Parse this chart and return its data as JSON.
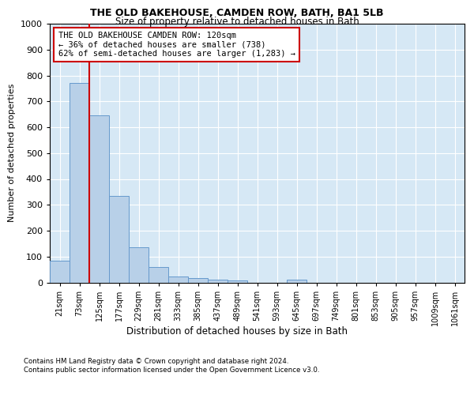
{
  "title1": "THE OLD BAKEHOUSE, CAMDEN ROW, BATH, BA1 5LB",
  "title2": "Size of property relative to detached houses in Bath",
  "xlabel": "Distribution of detached houses by size in Bath",
  "ylabel": "Number of detached properties",
  "bar_labels": [
    "21sqm",
    "73sqm",
    "125sqm",
    "177sqm",
    "229sqm",
    "281sqm",
    "333sqm",
    "385sqm",
    "437sqm",
    "489sqm",
    "541sqm",
    "593sqm",
    "645sqm",
    "697sqm",
    "749sqm",
    "801sqm",
    "853sqm",
    "905sqm",
    "957sqm",
    "1009sqm",
    "1061sqm"
  ],
  "bar_values": [
    83,
    770,
    645,
    333,
    135,
    60,
    22,
    18,
    11,
    8,
    0,
    0,
    10,
    0,
    0,
    0,
    0,
    0,
    0,
    0,
    0
  ],
  "bar_color": "#b8d0e8",
  "bar_edge_color": "#6699cc",
  "vline_x": 2,
  "vline_color": "#cc0000",
  "ylim": [
    0,
    1000
  ],
  "yticks": [
    0,
    100,
    200,
    300,
    400,
    500,
    600,
    700,
    800,
    900,
    1000
  ],
  "annotation_text": "THE OLD BAKEHOUSE CAMDEN ROW: 120sqm\n← 36% of detached houses are smaller (738)\n62% of semi-detached houses are larger (1,283) →",
  "annotation_box_color": "#ffffff",
  "annotation_border_color": "#cc0000",
  "footer1": "Contains HM Land Registry data © Crown copyright and database right 2024.",
  "footer2": "Contains public sector information licensed under the Open Government Licence v3.0.",
  "fig_bg_color": "#ffffff",
  "plot_bg_color": "#d6e8f5",
  "grid_color": "#ffffff"
}
